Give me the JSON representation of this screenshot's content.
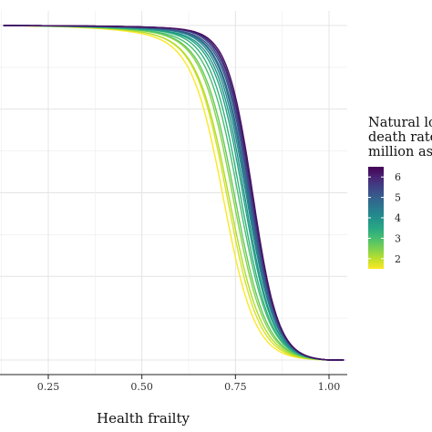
{
  "chart_data": {
    "type": "line",
    "xlabel": "Health frailty",
    "x_ticks": [
      0.25,
      0.5,
      0.75,
      1.0
    ],
    "x_tick_labels": [
      "0.25",
      "0.50",
      "0.75",
      "1.00"
    ],
    "xlim": [
      0.13,
      1.05
    ],
    "ylim": [
      0,
      1
    ],
    "grid": true,
    "legend": {
      "title_lines": [
        "Natural lo",
        "death rate",
        "million as"
      ],
      "labels": [
        "6",
        "5",
        "4",
        "3",
        "2"
      ],
      "range": [
        1.5,
        6.5
      ],
      "placement": "right"
    },
    "curve_model": "logistic_survival",
    "series": [
      {
        "rate": 1.5,
        "mid": 0.72,
        "width": 0.042,
        "early_drop": 0.07
      },
      {
        "rate": 1.8,
        "mid": 0.73,
        "width": 0.042,
        "early_drop": 0.06
      },
      {
        "rate": 2.1,
        "mid": 0.735,
        "width": 0.043,
        "early_drop": 0.06
      },
      {
        "rate": 2.4,
        "mid": 0.745,
        "width": 0.042,
        "early_drop": 0.05
      },
      {
        "rate": 2.7,
        "mid": 0.75,
        "width": 0.042,
        "early_drop": 0.05
      },
      {
        "rate": 3.0,
        "mid": 0.76,
        "width": 0.041,
        "early_drop": 0.05
      },
      {
        "rate": 3.3,
        "mid": 0.765,
        "width": 0.04,
        "early_drop": 0.04
      },
      {
        "rate": 3.6,
        "mid": 0.772,
        "width": 0.039,
        "early_drop": 0.04
      },
      {
        "rate": 3.9,
        "mid": 0.776,
        "width": 0.038,
        "early_drop": 0.04
      },
      {
        "rate": 4.2,
        "mid": 0.78,
        "width": 0.038,
        "early_drop": 0.03
      },
      {
        "rate": 4.5,
        "mid": 0.783,
        "width": 0.037,
        "early_drop": 0.03
      },
      {
        "rate": 4.8,
        "mid": 0.786,
        "width": 0.037,
        "early_drop": 0.03
      },
      {
        "rate": 5.1,
        "mid": 0.789,
        "width": 0.036,
        "early_drop": 0.03
      },
      {
        "rate": 5.4,
        "mid": 0.791,
        "width": 0.036,
        "early_drop": 0.02
      },
      {
        "rate": 5.7,
        "mid": 0.793,
        "width": 0.035,
        "early_drop": 0.02
      },
      {
        "rate": 6.0,
        "mid": 0.795,
        "width": 0.035,
        "early_drop": 0.02
      },
      {
        "rate": 6.3,
        "mid": 0.797,
        "width": 0.034,
        "early_drop": 0.02
      }
    ]
  }
}
